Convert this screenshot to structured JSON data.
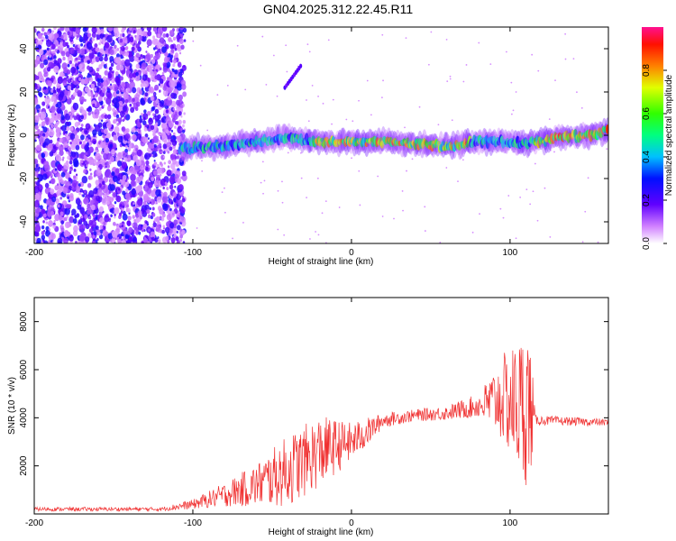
{
  "title": "GN04.2025.312.22.45.R11",
  "chart_data": [
    {
      "type": "heatmap",
      "xlabel": "Height of straight line (km)",
      "ylabel": "Frequency (Hz)",
      "xlim": [
        -200,
        162
      ],
      "ylim": [
        -50,
        50
      ],
      "xticks": [
        -200,
        -100,
        0,
        100
      ],
      "yticks": [
        -40,
        -20,
        0,
        20,
        40
      ],
      "colorbar": {
        "label": "Normalized spectral amplitude",
        "range": [
          0,
          1
        ],
        "ticks": [
          "0.0",
          "0.2",
          "0.4",
          "0.6",
          "0.8"
        ],
        "tick_values": [
          0.0,
          0.2,
          0.4,
          0.6,
          0.8
        ]
      },
      "band_centerline": [
        {
          "x": -105,
          "y": -6
        },
        {
          "x": -80,
          "y": -5
        },
        {
          "x": -60,
          "y": -3
        },
        {
          "x": -40,
          "y": -1
        },
        {
          "x": -20,
          "y": -3
        },
        {
          "x": 0,
          "y": -3
        },
        {
          "x": 20,
          "y": -3
        },
        {
          "x": 40,
          "y": -4
        },
        {
          "x": 60,
          "y": -5
        },
        {
          "x": 80,
          "y": -3
        },
        {
          "x": 100,
          "y": -3
        },
        {
          "x": 110,
          "y": -4
        },
        {
          "x": 130,
          "y": -1
        },
        {
          "x": 150,
          "y": 0
        },
        {
          "x": 162,
          "y": 2
        }
      ],
      "streak": [
        {
          "x": -42,
          "y": 22
        },
        {
          "x": -32,
          "y": 32
        }
      ]
    },
    {
      "type": "line",
      "xlabel": "Height of straight line (km)",
      "ylabel": "SNR (10 * v/v)",
      "xlim": [
        -200,
        162
      ],
      "ylim": [
        0,
        9000
      ],
      "xticks": [
        -200,
        -100,
        0,
        100
      ],
      "yticks": [
        2000,
        4000,
        6000,
        8000
      ],
      "color": "#f03030",
      "envelope": [
        {
          "x": -200,
          "mean": 200,
          "amp": 80
        },
        {
          "x": -120,
          "mean": 200,
          "amp": 80
        },
        {
          "x": -100,
          "mean": 400,
          "amp": 200
        },
        {
          "x": -80,
          "mean": 800,
          "amp": 500
        },
        {
          "x": -60,
          "mean": 1200,
          "amp": 900
        },
        {
          "x": -40,
          "mean": 1800,
          "amp": 1500
        },
        {
          "x": -20,
          "mean": 2600,
          "amp": 1500
        },
        {
          "x": 0,
          "mean": 3000,
          "amp": 800
        },
        {
          "x": 10,
          "mean": 3400,
          "amp": 600
        },
        {
          "x": 20,
          "mean": 3900,
          "amp": 300
        },
        {
          "x": 40,
          "mean": 4100,
          "amp": 250
        },
        {
          "x": 60,
          "mean": 4200,
          "amp": 300
        },
        {
          "x": 80,
          "mean": 4500,
          "amp": 500
        },
        {
          "x": 95,
          "mean": 4800,
          "amp": 1800
        },
        {
          "x": 105,
          "mean": 4500,
          "amp": 2800
        },
        {
          "x": 112,
          "mean": 4500,
          "amp": 3500
        },
        {
          "x": 116,
          "mean": 3900,
          "amp": 200
        },
        {
          "x": 162,
          "mean": 3800,
          "amp": 150
        }
      ]
    }
  ]
}
